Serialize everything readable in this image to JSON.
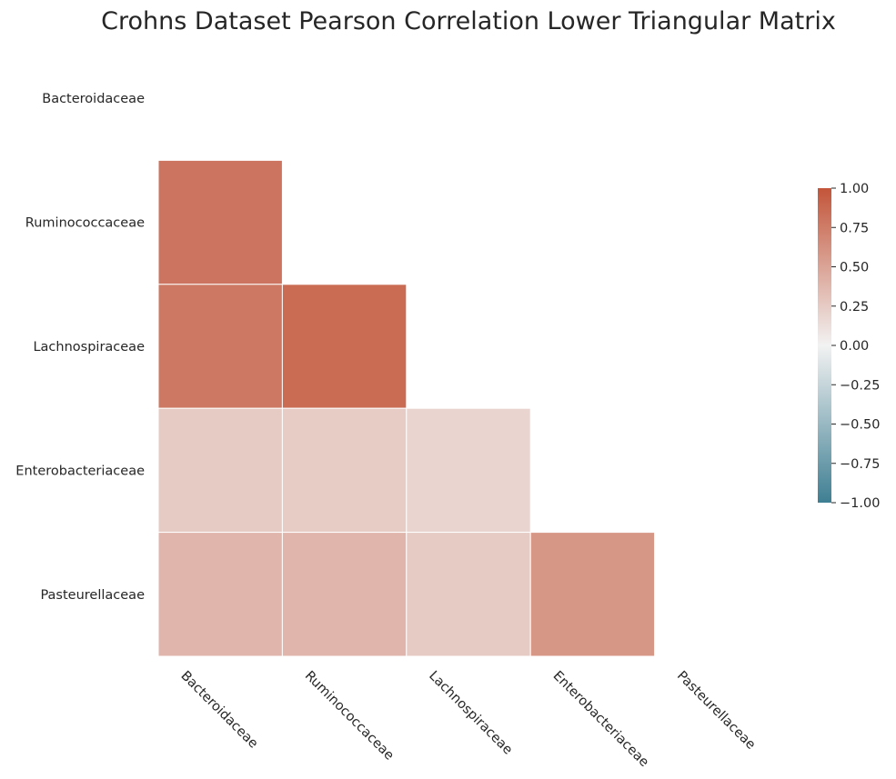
{
  "chart_data": {
    "type": "heatmap",
    "title": "Crohns Dataset Pearson Correlation Lower Triangular Matrix",
    "xlabel": "",
    "ylabel": "",
    "row_labels": [
      "Bacteroidaceae",
      "Ruminococcaceae",
      "Lachnospiraceae",
      "Enterobacteriaceae",
      "Pasteurellaceae"
    ],
    "col_labels": [
      "Bacteroidaceae",
      "Ruminococcaceae",
      "Lachnospiraceae",
      "Enterobacteriaceae",
      "Pasteurellaceae"
    ],
    "mask": "upper-triangle-including-diagonal",
    "values": [
      [
        null,
        null,
        null,
        null,
        null
      ],
      [
        0.8,
        null,
        null,
        null,
        null
      ],
      [
        0.78,
        0.86,
        null,
        null,
        null
      ],
      [
        0.25,
        0.24,
        0.19,
        null,
        null
      ],
      [
        0.38,
        0.38,
        0.25,
        0.58,
        null
      ]
    ],
    "vmin": -1.0,
    "vmax": 1.0,
    "colormap": {
      "low": "#3f7f93",
      "mid": "#f2f2f2",
      "high": "#c3553a"
    },
    "cell_border_color": "#ffffff",
    "colorbar": {
      "position": "right",
      "ticks": [
        1.0,
        0.75,
        0.5,
        0.25,
        0.0,
        -0.25,
        -0.5,
        -0.75,
        -1.0
      ],
      "tick_labels": [
        "1.00",
        "0.75",
        "0.50",
        "0.25",
        "0.00",
        "−0.25",
        "−0.50",
        "−0.75",
        "−1.00"
      ]
    }
  }
}
